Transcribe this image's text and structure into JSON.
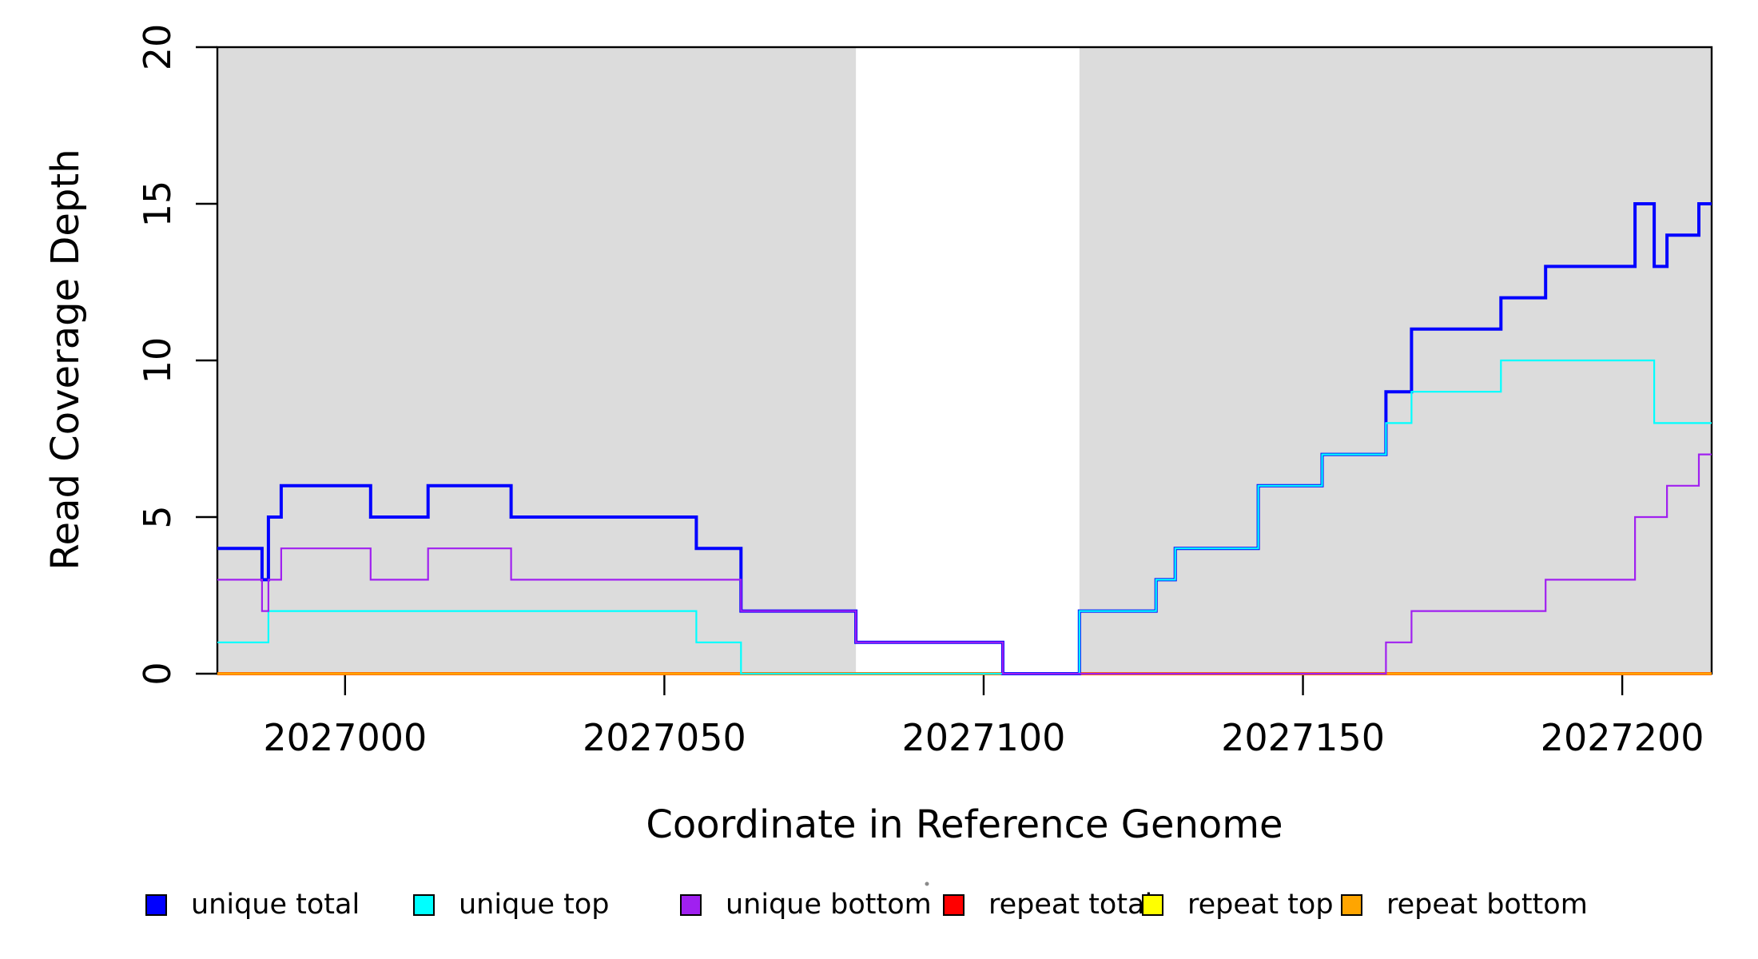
{
  "figure": {
    "xlabel": "Coordinate in Reference Genome",
    "ylabel": "Read Coverage Depth"
  },
  "legend": {
    "items": [
      {
        "label": "unique total",
        "color": "#0000FF"
      },
      {
        "label": "unique top",
        "color": "#00FFFF"
      },
      {
        "label": "unique bottom",
        "color": "#A020F0"
      },
      {
        "label": "repeat total",
        "color": "#FF0000"
      },
      {
        "label": "repeat top",
        "color": "#FFFF00"
      },
      {
        "label": "repeat bottom",
        "color": "#FFA500"
      }
    ]
  },
  "chart_data": {
    "type": "line",
    "subtype": "step-after",
    "title": "",
    "xlabel": "Coordinate in Reference Genome",
    "ylabel": "Read Coverage Depth",
    "xlim": [
      2026980,
      2027214
    ],
    "ylim": [
      0,
      20
    ],
    "x_ticks": [
      2027000,
      2027050,
      2027100,
      2027150,
      2027200
    ],
    "y_ticks": [
      0,
      5,
      10,
      15,
      20
    ],
    "grid": false,
    "legend_position": "bottom",
    "shade_color": "#DCDCDC",
    "shaded_regions": [
      {
        "x0": 2026980,
        "x1": 2027080
      },
      {
        "x0": 2027115,
        "x1": 2027214
      }
    ],
    "draw_order": [
      "repeat total",
      "repeat top",
      "repeat bottom",
      "unique total",
      "unique top",
      "unique bottom"
    ],
    "series": [
      {
        "name": "unique total",
        "color": "#0000FF",
        "line_width": 4,
        "points": [
          [
            2026980,
            4
          ],
          [
            2026987,
            3
          ],
          [
            2026988,
            5
          ],
          [
            2026990,
            6
          ],
          [
            2027004,
            5
          ],
          [
            2027013,
            6
          ],
          [
            2027026,
            5
          ],
          [
            2027055,
            4
          ],
          [
            2027062,
            2
          ],
          [
            2027080,
            1
          ],
          [
            2027103,
            0
          ],
          [
            2027115,
            2
          ],
          [
            2027127,
            3
          ],
          [
            2027130,
            4
          ],
          [
            2027143,
            6
          ],
          [
            2027153,
            7
          ],
          [
            2027163,
            9
          ],
          [
            2027167,
            11
          ],
          [
            2027181,
            12
          ],
          [
            2027188,
            13
          ],
          [
            2027202,
            15
          ],
          [
            2027205,
            13
          ],
          [
            2027207,
            14
          ],
          [
            2027212,
            15
          ],
          [
            2027214,
            15
          ]
        ]
      },
      {
        "name": "unique top",
        "color": "#00FFFF",
        "line_width": 2.2,
        "points": [
          [
            2026980,
            1
          ],
          [
            2026988,
            2
          ],
          [
            2027055,
            1
          ],
          [
            2027062,
            0
          ],
          [
            2027115,
            2
          ],
          [
            2027127,
            3
          ],
          [
            2027130,
            4
          ],
          [
            2027143,
            6
          ],
          [
            2027153,
            7
          ],
          [
            2027163,
            8
          ],
          [
            2027167,
            9
          ],
          [
            2027181,
            10
          ],
          [
            2027205,
            8
          ],
          [
            2027214,
            8
          ]
        ]
      },
      {
        "name": "unique bottom",
        "color": "#A020F0",
        "line_width": 2.2,
        "points": [
          [
            2026980,
            3
          ],
          [
            2026987,
            2
          ],
          [
            2026988,
            3
          ],
          [
            2026990,
            4
          ],
          [
            2027004,
            3
          ],
          [
            2027013,
            4
          ],
          [
            2027026,
            3
          ],
          [
            2027062,
            2
          ],
          [
            2027080,
            1
          ],
          [
            2027103,
            0
          ],
          [
            2027163,
            1
          ],
          [
            2027167,
            2
          ],
          [
            2027188,
            3
          ],
          [
            2027202,
            5
          ],
          [
            2027207,
            6
          ],
          [
            2027212,
            7
          ],
          [
            2027214,
            7
          ]
        ]
      },
      {
        "name": "repeat total",
        "color": "#FF0000",
        "line_width": 4,
        "points": [
          [
            2026980,
            0
          ],
          [
            2027214,
            0
          ]
        ]
      },
      {
        "name": "repeat top",
        "color": "#FFFF00",
        "line_width": 3.2,
        "points": [
          [
            2026980,
            0
          ],
          [
            2027214,
            0
          ]
        ]
      },
      {
        "name": "repeat bottom",
        "color": "#FFA500",
        "line_width": 3,
        "points": [
          [
            2026980,
            0
          ],
          [
            2027214,
            0
          ]
        ]
      }
    ],
    "specks": [
      {
        "x": 1160,
        "y": 1106
      }
    ]
  }
}
